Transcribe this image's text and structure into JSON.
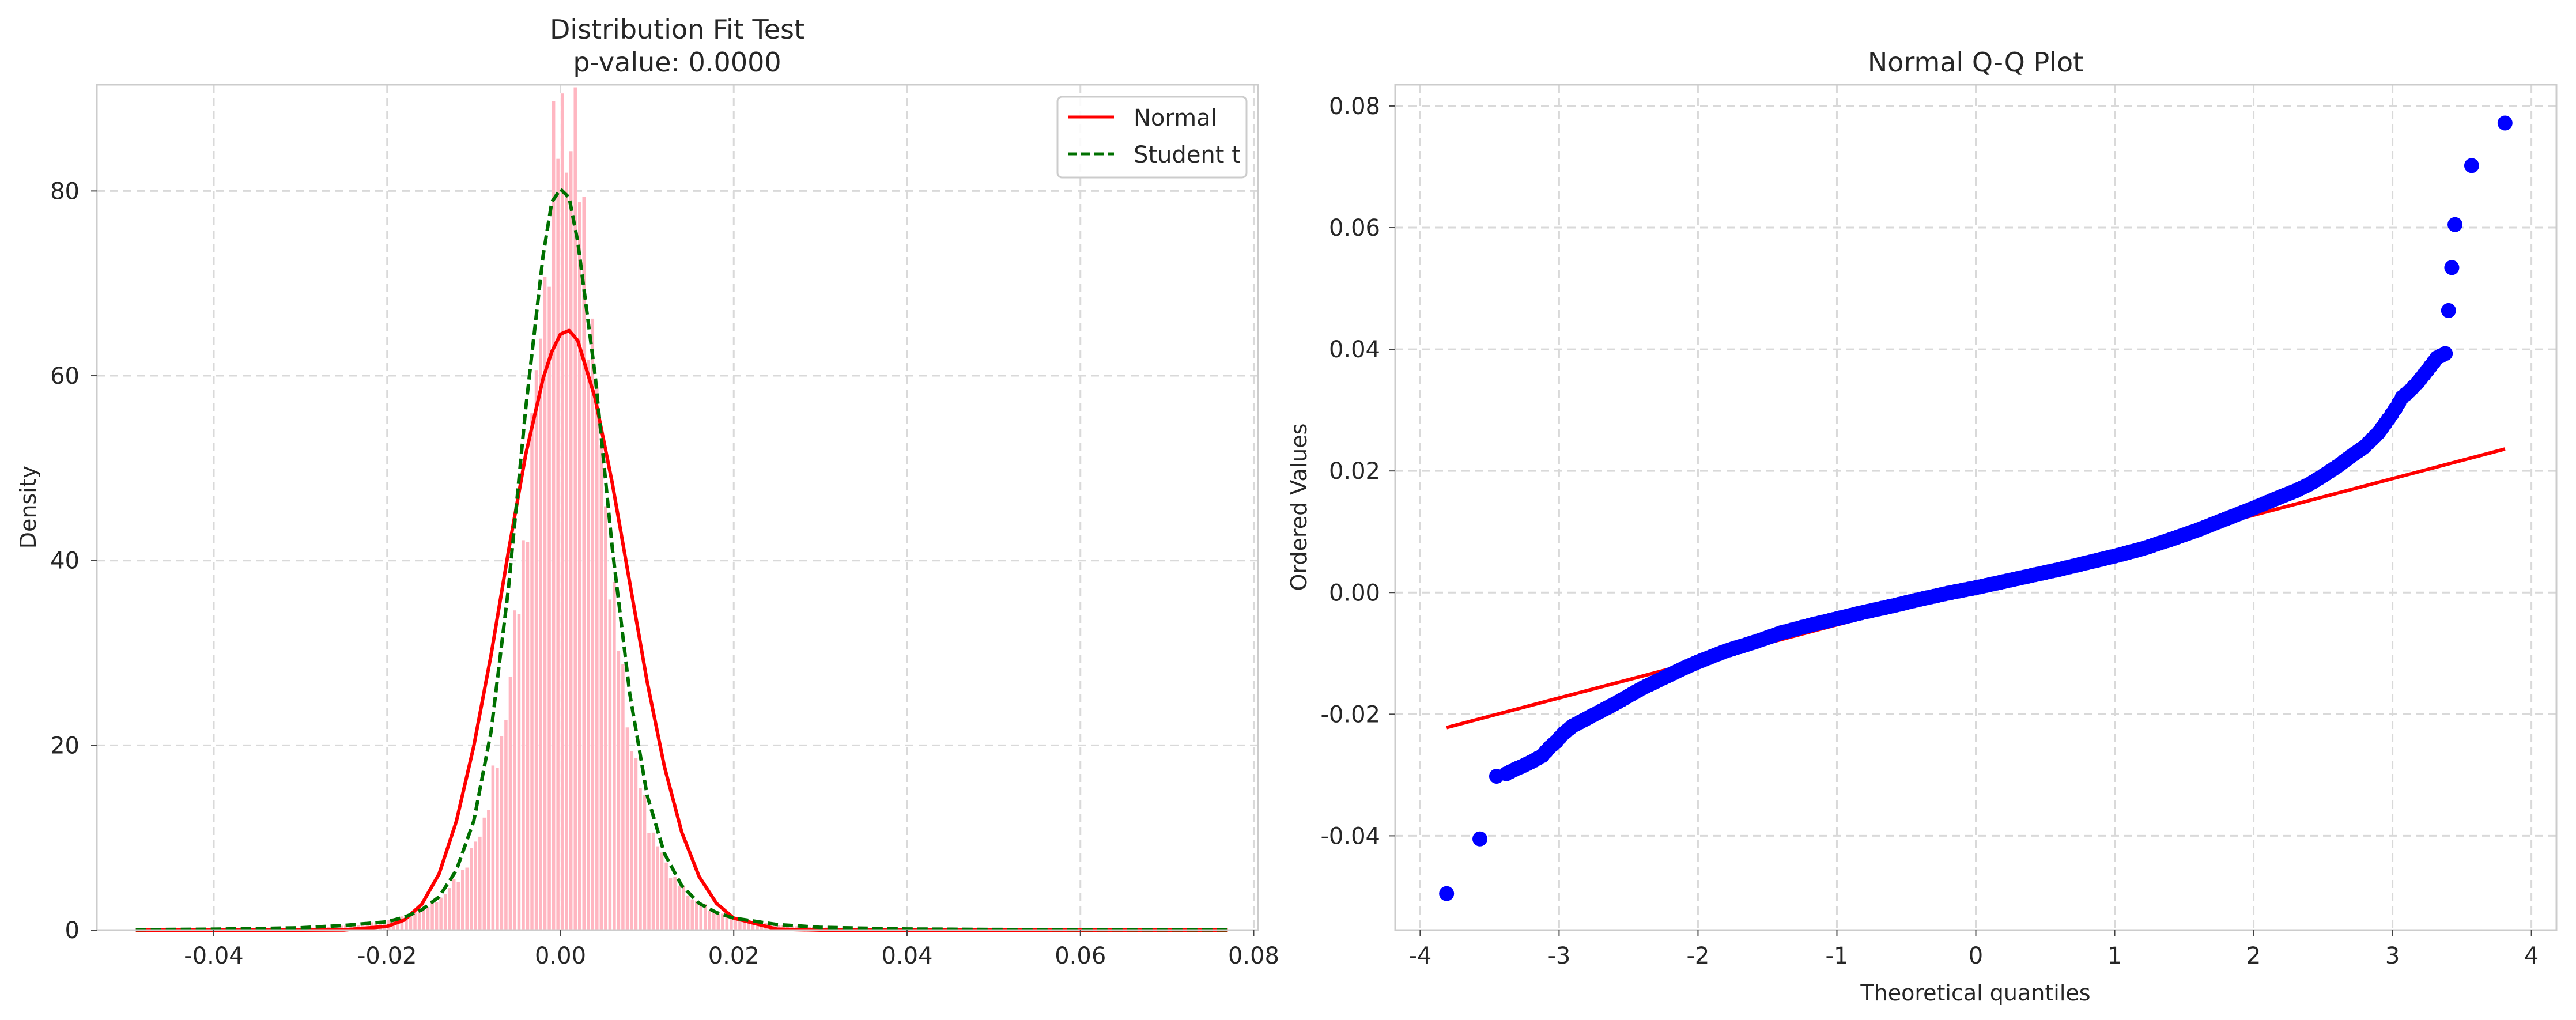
{
  "colors": {
    "normal": "#ff0000",
    "student": "#007000",
    "histogram": "#ffb6c1",
    "qq_points": "#0000ff",
    "qq_line": "#ff0000"
  },
  "chart_data": [
    {
      "type": "histogram",
      "title": "Distribution Fit Test\np-value: 0.0000",
      "title_lines": [
        "Distribution Fit Test",
        "p-value: 0.0000"
      ],
      "xlabel": "",
      "ylabel": "Density",
      "xlim": [
        -0.0535,
        0.0805
      ],
      "ylim": [
        0,
        91.5
      ],
      "xticks": [
        -0.04,
        -0.02,
        0.0,
        0.02,
        0.04,
        0.06,
        0.08
      ],
      "xtick_labels": [
        "-0.04",
        "-0.02",
        "0.00",
        "0.02",
        "0.04",
        "0.06",
        "0.08"
      ],
      "yticks": [
        0,
        20,
        40,
        60,
        80
      ],
      "ytick_labels": [
        "0",
        "20",
        "40",
        "60",
        "80"
      ],
      "grid": true,
      "legend_position": "top-right",
      "histogram": {
        "range": [
          -0.049,
          0.077
        ],
        "bin_width": 0.0005,
        "mean": 0.0007,
        "scale": 0.0042,
        "df": 3,
        "peak_density": 88
      },
      "series": [
        {
          "name": "Normal",
          "style": "solid",
          "x": [
            -0.049,
            -0.04,
            -0.03,
            -0.025,
            -0.02,
            -0.018,
            -0.016,
            -0.014,
            -0.012,
            -0.01,
            -0.008,
            -0.006,
            -0.004,
            -0.002,
            -0.001,
            0.0,
            0.001,
            0.002,
            0.004,
            0.006,
            0.008,
            0.01,
            0.012,
            0.014,
            0.016,
            0.018,
            0.02,
            0.025,
            0.03,
            0.04,
            0.05,
            0.06,
            0.077
          ],
          "y": [
            0,
            0,
            0,
            0.01,
            0.4,
            1.1,
            2.8,
            6.1,
            11.8,
            19.9,
            29.8,
            41.0,
            51.5,
            59.7,
            62.6,
            64.5,
            64.9,
            63.8,
            57.6,
            48.3,
            37.6,
            26.9,
            17.7,
            10.6,
            5.8,
            2.9,
            1.3,
            0.1,
            0,
            0,
            0,
            0,
            0
          ]
        },
        {
          "name": "Student t",
          "style": "dashed",
          "x": [
            -0.049,
            -0.04,
            -0.03,
            -0.025,
            -0.02,
            -0.018,
            -0.016,
            -0.014,
            -0.012,
            -0.01,
            -0.008,
            -0.006,
            -0.004,
            -0.002,
            -0.001,
            0.0,
            0.001,
            0.002,
            0.004,
            0.006,
            0.008,
            0.01,
            0.012,
            0.014,
            0.016,
            0.018,
            0.02,
            0.025,
            0.03,
            0.04,
            0.05,
            0.06,
            0.077
          ],
          "y": [
            0.05,
            0.1,
            0.25,
            0.5,
            0.9,
            1.4,
            2.2,
            3.6,
            6.5,
            11.8,
            21.5,
            37.0,
            56.5,
            73.0,
            78.8,
            80.2,
            79.3,
            74.5,
            60.1,
            41.2,
            25.6,
            14.6,
            8.3,
            4.8,
            2.9,
            1.9,
            1.3,
            0.6,
            0.3,
            0.12,
            0.07,
            0.05,
            0.03
          ]
        }
      ]
    },
    {
      "type": "scatter",
      "title": "Normal Q-Q Plot",
      "xlabel": "Theoretical quantiles",
      "ylabel": "Ordered Values",
      "xlim": [
        -4.18,
        4.18
      ],
      "ylim": [
        -0.0555,
        0.0835
      ],
      "xticks": [
        -4,
        -3,
        -2,
        -1,
        0,
        1,
        2,
        3,
        4
      ],
      "xtick_labels": [
        "-4",
        "-3",
        "-2",
        "-1",
        "0",
        "1",
        "2",
        "3",
        "4"
      ],
      "yticks": [
        -0.04,
        -0.02,
        0.0,
        0.02,
        0.04,
        0.06,
        0.08
      ],
      "ytick_labels": [
        "-0.04",
        "-0.02",
        "0.00",
        "0.02",
        "0.04",
        "0.06",
        "0.08"
      ],
      "grid": true,
      "reference_line": {
        "x": [
          -3.81,
          3.81
        ],
        "y": [
          -0.0222,
          0.0236
        ]
      },
      "points": {
        "x": [
          -3.81,
          -3.57,
          -3.45,
          -3.38,
          -3.32,
          -3.25,
          -3.18,
          -3.12,
          -3.07,
          -3.02,
          -2.97,
          -2.9,
          -2.8,
          -2.7,
          -2.6,
          -2.5,
          -2.4,
          -2.3,
          -2.2,
          -2.1,
          -2.0,
          -1.8,
          -1.6,
          -1.4,
          -1.2,
          -1.0,
          -0.8,
          -0.6,
          -0.4,
          -0.2,
          0.0,
          0.2,
          0.4,
          0.6,
          0.8,
          1.0,
          1.2,
          1.4,
          1.6,
          1.8,
          2.0,
          2.2,
          2.3,
          2.4,
          2.5,
          2.6,
          2.7,
          2.8,
          2.9,
          2.97,
          3.02,
          3.07,
          3.12,
          3.18,
          3.25,
          3.32,
          3.38,
          3.45,
          3.57,
          3.81
        ],
        "y": [
          -0.0495,
          -0.0405,
          -0.0302,
          -0.0298,
          -0.0291,
          -0.0284,
          -0.0276,
          -0.0268,
          -0.0255,
          -0.0245,
          -0.0232,
          -0.0219,
          -0.0207,
          -0.0195,
          -0.0183,
          -0.017,
          -0.0157,
          -0.0146,
          -0.0135,
          -0.0124,
          -0.0114,
          -0.0096,
          -0.0082,
          -0.0066,
          -0.0054,
          -0.0043,
          -0.0032,
          -0.0022,
          -0.0011,
          -0.0001,
          0.0008,
          0.0018,
          0.0028,
          0.0038,
          0.0049,
          0.006,
          0.0072,
          0.0087,
          0.0103,
          0.0121,
          0.0139,
          0.0158,
          0.0167,
          0.0178,
          0.0192,
          0.0207,
          0.0224,
          0.024,
          0.0263,
          0.0285,
          0.0302,
          0.0321,
          0.0331,
          0.0345,
          0.0365,
          0.0386,
          0.0393,
          0.0605,
          0.0702,
          0.0772
        ]
      }
    }
  ]
}
